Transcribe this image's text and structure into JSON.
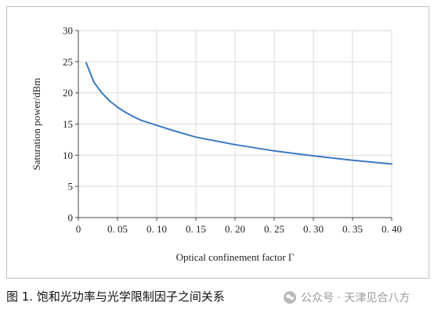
{
  "chart_data": {
    "type": "line",
    "xlabel": "Optical confinement factor Γ",
    "ylabel": "Saturation power/dBm",
    "xlim": [
      0,
      0.4
    ],
    "ylim": [
      0,
      30
    ],
    "xticks": [
      "0",
      "0. 05",
      "0. 10",
      "0. 15",
      "0. 20",
      "0. 25",
      "0. 30",
      "0. 35",
      "0. 40"
    ],
    "yticks": [
      "0",
      "5",
      "10",
      "15",
      "20",
      "25",
      "30"
    ],
    "grid": true,
    "series": [
      {
        "color": "#3a78c2",
        "x": [
          0.01,
          0.02,
          0.03,
          0.04,
          0.05,
          0.06,
          0.07,
          0.08,
          0.1,
          0.12,
          0.15,
          0.2,
          0.25,
          0.3,
          0.35,
          0.4
        ],
        "y": [
          24.8,
          21.7,
          20.0,
          18.7,
          17.7,
          16.9,
          16.2,
          15.6,
          14.8,
          14.0,
          12.9,
          11.7,
          10.7,
          9.9,
          9.2,
          8.6
        ]
      }
    ]
  },
  "caption": "图 1. 饱和光功率与光学限制因子之间关系",
  "watermark": "公众号 · 天津见合八方",
  "colors": {
    "line": "#3a78c2",
    "grid": "#d9d9d9",
    "axis": "#444444",
    "border": "#bdbdbd"
  }
}
